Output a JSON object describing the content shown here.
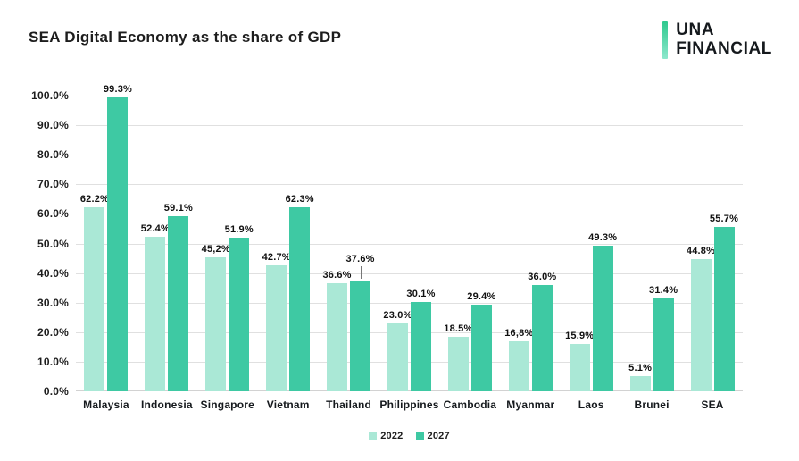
{
  "header": {
    "title": "SEA Digital Economy as the share of GDP",
    "logo": {
      "line1": "UNA",
      "line2": "FINANCIAL"
    }
  },
  "colors": {
    "series_2022": "#aae8d6",
    "series_2027": "#3ec9a3",
    "gridline": "#e0e0e0",
    "text": "#1d1d1d",
    "leader_line": "#777777",
    "logo_gradient_top": "#2ec98e",
    "logo_gradient_bottom": "#8ee8cd"
  },
  "chart_data": {
    "type": "bar",
    "title": "SEA Digital Economy as the share of GDP",
    "categories": [
      "Malaysia",
      "Indonesia",
      "Singapore",
      "Vietnam",
      "Thailand",
      "Philippines",
      "Cambodia",
      "Myanmar",
      "Laos",
      "Brunei",
      "SEA"
    ],
    "series": [
      {
        "name": "2022",
        "color": "#aae8d6",
        "values": [
          62.2,
          52.4,
          45.2,
          42.7,
          36.6,
          23.0,
          18.5,
          16.8,
          15.9,
          5.1,
          44.8
        ],
        "labels": [
          "62.2%",
          "52.4%",
          "45,2%",
          "42.7%",
          "36.6%",
          "23.0%",
          "18.5%",
          "16,8%",
          "15.9%",
          "5.1%",
          "44.8%"
        ],
        "raised_label_indices": []
      },
      {
        "name": "2027",
        "color": "#3ec9a3",
        "values": [
          99.3,
          59.1,
          51.9,
          62.3,
          37.6,
          30.1,
          29.4,
          36.0,
          49.3,
          31.4,
          55.7
        ],
        "labels": [
          "99.3%",
          "59.1%",
          "51.9%",
          "62.3%",
          "37.6%",
          "30.1%",
          "29.4%",
          "36.0%",
          "49.3%",
          "31.4%",
          "55.7%"
        ],
        "raised_label_indices": [
          4
        ]
      }
    ],
    "xlabel": "",
    "ylabel": "",
    "ylim": [
      0,
      100
    ],
    "yticks": [
      "0.0%",
      "10.0%",
      "20.0%",
      "30.0%",
      "40.0%",
      "50.0%",
      "60.0%",
      "70.0%",
      "80.0%",
      "90.0%",
      "100.0%"
    ],
    "grid": true,
    "legend_position": "bottom",
    "legend": [
      "2022",
      "2027"
    ]
  }
}
